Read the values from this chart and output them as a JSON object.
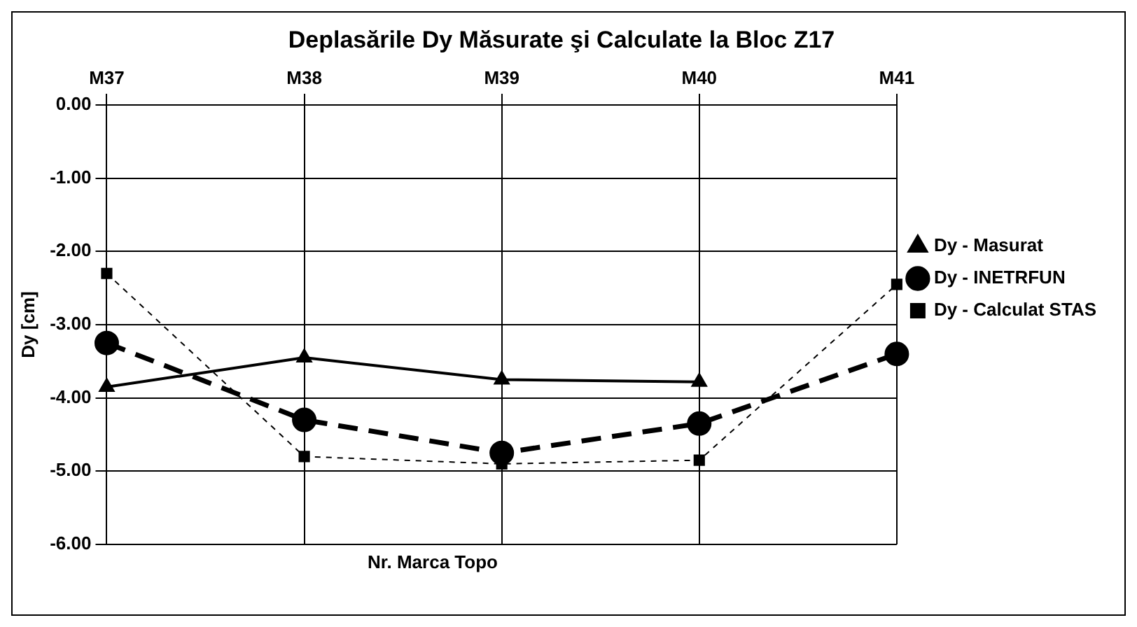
{
  "chart_data": {
    "type": "line",
    "title": "Deplasările Dy Măsurate şi Calculate la Bloc Z17",
    "xlabel": "Nr. Marca Topo",
    "ylabel": "Dy [cm]",
    "categories": [
      "M37",
      "M38",
      "M39",
      "M40",
      "M41"
    ],
    "series": [
      {
        "name": "Dy - Masurat",
        "color": "#000000",
        "marker": "triangle",
        "line_style": "solid",
        "values": [
          -3.85,
          -3.45,
          -3.75,
          -3.78,
          null
        ]
      },
      {
        "name": "Dy - INETRFUN",
        "color": "#000000",
        "marker": "circle",
        "line_style": "dashed",
        "values": [
          -3.25,
          -4.3,
          -4.75,
          -4.35,
          -3.4
        ]
      },
      {
        "name": "Dy - Calculat STAS",
        "color": "#000000",
        "marker": "square",
        "line_style": "dotted",
        "values": [
          -2.3,
          -4.8,
          -4.9,
          -4.85,
          -2.45
        ]
      }
    ],
    "ylim": [
      -6,
      0
    ],
    "yticks": [
      {
        "value": 0,
        "label": "0.00"
      },
      {
        "value": -1,
        "label": "-1.00"
      },
      {
        "value": -2,
        "label": "-2.00"
      },
      {
        "value": -3,
        "label": "-3.00"
      },
      {
        "value": -4,
        "label": "-4.00"
      },
      {
        "value": -5,
        "label": "-5.00"
      },
      {
        "value": -6,
        "label": "-6.00"
      }
    ],
    "grid": true,
    "legend": "right"
  }
}
